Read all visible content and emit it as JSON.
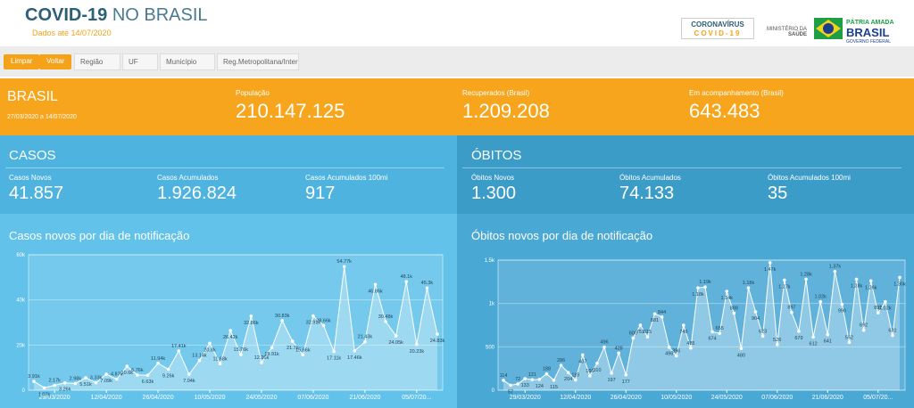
{
  "header": {
    "title": "COVID-19",
    "title_rest": "NO BRASIL",
    "date": "Dados até 14/07/2020",
    "logo1_line1": "CORONAVÍRUS",
    "logo1_line2": "COVID-19",
    "ministry1": "MINISTÉRIO DA",
    "ministry2": "SAÚDE",
    "gov1": "PÁTRIA AMADA",
    "gov2": "BRASIL",
    "gov3": "GOVERNO FEDERAL"
  },
  "filters": {
    "buttons": [
      "Limpar",
      "Voltar"
    ],
    "fields": [
      "Região",
      "UF",
      "Município",
      "Reg.Metropolitana/Interi..."
    ]
  },
  "summary": {
    "name": "BRASIL",
    "period": "27/03/2020 a 14/07/2020",
    "stats": [
      {
        "label": "População",
        "value": "210.147.125"
      },
      {
        "label": "Recuperados (Brasil)",
        "value": "1.209.208"
      },
      {
        "label": "Em acompanhamento (Brasil)",
        "value": "643.483"
      }
    ]
  },
  "casos": {
    "title": "CASOS",
    "stats": [
      {
        "label": "Casos Novos",
        "value": "41.857"
      },
      {
        "label": "Casos Acumulados",
        "value": "1.926.824"
      },
      {
        "label": "Casos Acumulados 100mi",
        "value": "917"
      }
    ]
  },
  "obitos": {
    "title": "ÓBITOS",
    "stats": [
      {
        "label": "Óbitos Novos",
        "value": "1.300"
      },
      {
        "label": "Óbitos Acumulados",
        "value": "74.133"
      },
      {
        "label": "Óbitos Acumulados 100mi",
        "value": "35"
      }
    ]
  },
  "chart_data": [
    {
      "type": "line",
      "title": "Casos novos por dia de notificação",
      "color": "#ffffff",
      "categories": [
        null,
        null,
        "29/03/2020",
        null,
        null,
        null,
        null,
        "12/04/2020",
        null,
        null,
        null,
        null,
        "26/04/2020",
        null,
        null,
        null,
        null,
        "10/05/2020",
        null,
        null,
        null,
        null,
        "24/05/2020",
        null,
        null,
        null,
        null,
        "07/06/2020",
        null,
        null,
        null,
        null,
        "21/06/2020",
        null,
        null,
        null,
        null,
        "05/07/20...",
        null,
        null
      ],
      "values": [
        3910,
        1070,
        2170,
        3260,
        2980,
        5510,
        3330,
        7090,
        4870,
        10600,
        6760,
        6630,
        11940,
        9260,
        17410,
        7040,
        13140,
        20800,
        11680,
        26420,
        15760,
        32860,
        12260,
        18910,
        30830,
        21700,
        15660,
        32910,
        28660,
        17110,
        54770,
        17460,
        21430,
        46860,
        30480,
        24050,
        48100,
        20230,
        45300,
        24830
      ],
      "value_labels": [
        "3.91k",
        "1.07k",
        "2.17k",
        "3.26k",
        "2.98k",
        "5.51k",
        "3.33k",
        "7.09k",
        "4.87k",
        "10.6k",
        "6.76k",
        "6.63k",
        "11.94k",
        "9.26k",
        "17.41k",
        "7.04k",
        "13.14k",
        "20.8k",
        "11.68k",
        "26.42k",
        "15.76k",
        "32.86k",
        "12.26k",
        "18.91k",
        "30.83k",
        "21.7k",
        "15.66k",
        "32.91k",
        "28.66k",
        "17.11k",
        "54.77k",
        "17.46k",
        "21.43k",
        "46.86k",
        "30.48k",
        "24.05k",
        "48.1k",
        "20.23k",
        "45.3k",
        "24.83k"
      ],
      "ylim": [
        0,
        60000
      ],
      "yticks": [
        0,
        {
          "value": 20000,
          "label": "20k"
        },
        {
          "value": 40000,
          "label": "40k"
        },
        {
          "value": 60000,
          "label": "60k"
        }
      ],
      "grid": true
    },
    {
      "type": "line",
      "title": "Óbitos novos por dia de notificação",
      "color": "#ffffff",
      "categories": [
        null,
        null,
        null,
        "29/03/2020",
        null,
        null,
        null,
        null,
        null,
        null,
        "12/04/2020",
        null,
        null,
        null,
        null,
        null,
        null,
        "26/04/2020",
        null,
        null,
        null,
        null,
        null,
        null,
        "10/05/2020",
        null,
        null,
        null,
        null,
        null,
        null,
        "24/05/2020",
        null,
        null,
        null,
        null,
        null,
        null,
        "07/06/2020",
        null,
        null,
        null,
        null,
        null,
        null,
        "21/06/2020",
        null,
        null,
        null,
        null,
        null,
        null,
        "05/07/20...",
        null,
        null,
        null
      ],
      "values": [
        114,
        57,
        72,
        133,
        121,
        124,
        188,
        115,
        286,
        204,
        118,
        407,
        166,
        310,
        496,
        197,
        428,
        177,
        600,
        751,
        615,
        881,
        844,
        496,
        396,
        749,
        485,
        1180,
        1190,
        674,
        655,
        1140,
        888,
        480,
        1180,
        904,
        623,
        1470,
        526,
        1270,
        897,
        679,
        1280,
        612,
        1020,
        641,
        1370,
        990,
        552,
        1280,
        692,
        1260,
        892,
        1020,
        631,
        1300
      ],
      "value_labels": [
        "114",
        "57",
        "72",
        "133",
        "121",
        "124",
        "188",
        "115",
        "286",
        "204",
        "118",
        "407",
        "166",
        "310",
        "496",
        "197",
        "428",
        "177",
        "600",
        "751",
        "615",
        "881",
        "844",
        "496",
        "396",
        "749",
        "485",
        "1.18k",
        "1.19k",
        "674",
        "655",
        "1.14k",
        "888",
        "480",
        "1.18k",
        "904",
        "623",
        "1.47k",
        "526",
        "1.27k",
        "897",
        "679",
        "1.28k",
        "612",
        "1.02k",
        "641",
        "1.37k",
        "990",
        "552",
        "1.28k",
        "692",
        "1.26k",
        "892",
        "1.02k",
        "631",
        "1.30k"
      ],
      "ylim": [
        0,
        1500
      ],
      "yticks": [
        0,
        500,
        {
          "value": 1000,
          "label": "1k"
        },
        {
          "value": 1500,
          "label": "1.5k"
        }
      ],
      "grid": true
    }
  ]
}
